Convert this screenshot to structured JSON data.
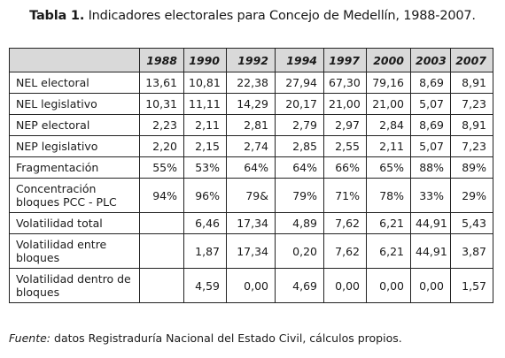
{
  "caption": {
    "label": "Tabla 1.",
    "text": "Indicadores electorales para Concejo de Medellín, 1988-2007."
  },
  "table": {
    "corner": "",
    "years": [
      "1988",
      "1990",
      "1992",
      "1994",
      "1997",
      "2000",
      "2003",
      "2007"
    ],
    "rows": [
      {
        "label": "NEL electoral",
        "values": [
          "13,61",
          "10,81",
          "22,38",
          "27,94",
          "67,30",
          "79,16",
          "8,69",
          "8,91"
        ]
      },
      {
        "label": "NEL legislativo",
        "values": [
          "10,31",
          "11,11",
          "14,29",
          "20,17",
          "21,00",
          "21,00",
          "5,07",
          "7,23"
        ]
      },
      {
        "label": "NEP electoral",
        "values": [
          "2,23",
          "2,11",
          "2,81",
          "2,79",
          "2,97",
          "2,84",
          "8,69",
          "8,91"
        ]
      },
      {
        "label": "NEP legislativo",
        "values": [
          "2,20",
          "2,15",
          "2,74",
          "2,85",
          "2,55",
          "2,11",
          "5,07",
          "7,23"
        ]
      },
      {
        "label": "Fragmentación",
        "values": [
          "55%",
          "53%",
          "64%",
          "64%",
          "66%",
          "65%",
          "88%",
          "89%"
        ]
      },
      {
        "label": "Concentración bloques PCC - PLC",
        "values": [
          "94%",
          "96%",
          "79&",
          "79%",
          "71%",
          "78%",
          "33%",
          "29%"
        ]
      },
      {
        "label": "Volatilidad total",
        "values": [
          "",
          "6,46",
          "17,34",
          "4,89",
          "7,62",
          "6,21",
          "44,91",
          "5,43"
        ]
      },
      {
        "label": "Volatilidad entre bloques",
        "values": [
          "",
          "1,87",
          "17,34",
          "0,20",
          "7,62",
          "6,21",
          "44,91",
          "3,87"
        ]
      },
      {
        "label": "Volatilidad dentro de bloques",
        "values": [
          "",
          "4,59",
          "0,00",
          "4,69",
          "0,00",
          "0,00",
          "0,00",
          "1,57"
        ]
      }
    ]
  },
  "footnote": {
    "label": "Fuente:",
    "text": "datos Registraduría Nacional del Estado Civil, cálculos propios."
  },
  "colors": {
    "header_background": "#d9d9d9",
    "border": "#222222"
  }
}
